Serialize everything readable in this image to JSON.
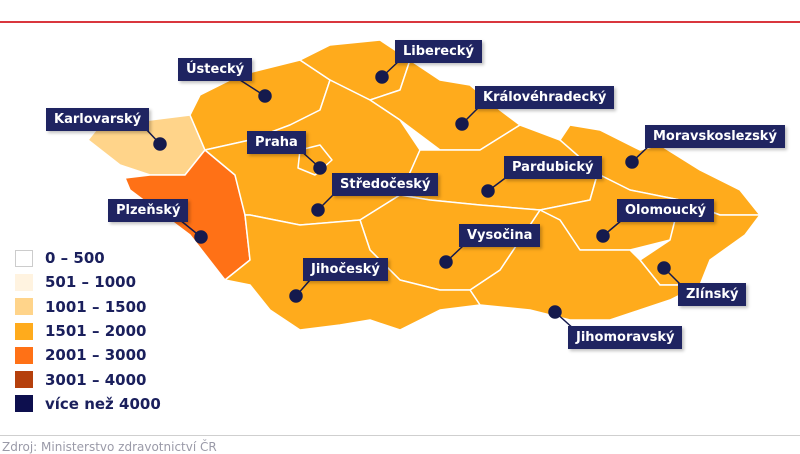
{
  "source": "Zdroj: Ministerstvo zdravotnictví ČR",
  "colors": {
    "accent_line": "#d9363e",
    "label_bg": "#1f2461",
    "dot": "#151a4d",
    "border": "#ffffff"
  },
  "legend": [
    {
      "label": "0 – 500",
      "color": "#ffffff"
    },
    {
      "label": "501 – 1000",
      "color": "#fff3e0"
    },
    {
      "label": "1001 – 1500",
      "color": "#ffd48a"
    },
    {
      "label": "1501 – 2000",
      "color": "#ffab1c"
    },
    {
      "label": "2001 – 3000",
      "color": "#ff7116"
    },
    {
      "label": "3001 – 4000",
      "color": "#b5400c"
    },
    {
      "label": "více než 4000",
      "color": "#0d0f4e"
    }
  ],
  "regions": {
    "karlovarsky": {
      "name": "Karlovarský",
      "category": "1001 – 1500",
      "color": "#ffd48a"
    },
    "plzensky": {
      "name": "Plzeňský",
      "category": "2001 – 3000",
      "color": "#ff7116"
    },
    "ustecky": {
      "name": "Ústecký",
      "category": "1501 – 2000",
      "color": "#ffab1c"
    },
    "liberecky": {
      "name": "Liberecký",
      "category": "1501 – 2000",
      "color": "#ffab1c"
    },
    "kralovehradecky": {
      "name": "Královéhradecký",
      "category": "1501 – 2000",
      "color": "#ffab1c"
    },
    "stredocesky": {
      "name": "Středočeský",
      "category": "1501 – 2000",
      "color": "#ffab1c"
    },
    "praha": {
      "name": "Praha",
      "category": "1501 – 2000",
      "color": "#ffab1c"
    },
    "pardubicky": {
      "name": "Pardubický",
      "category": "1501 – 2000",
      "color": "#ffab1c"
    },
    "moravskoslezsky": {
      "name": "Moravskoslezský",
      "category": "1501 – 2000",
      "color": "#ffab1c"
    },
    "olomoucky": {
      "name": "Olomoucký",
      "category": "1501 – 2000",
      "color": "#ffab1c"
    },
    "zlinsky": {
      "name": "Zlínský",
      "category": "1501 – 2000",
      "color": "#ffab1c"
    },
    "jihomoravsky": {
      "name": "Jihomoravský",
      "category": "1501 – 2000",
      "color": "#ffab1c"
    },
    "vysocina": {
      "name": "Vysočina",
      "category": "1501 – 2000",
      "color": "#ffab1c"
    },
    "jihocesky": {
      "name": "Jihočeský",
      "category": "1501 – 2000",
      "color": "#ffab1c"
    }
  }
}
